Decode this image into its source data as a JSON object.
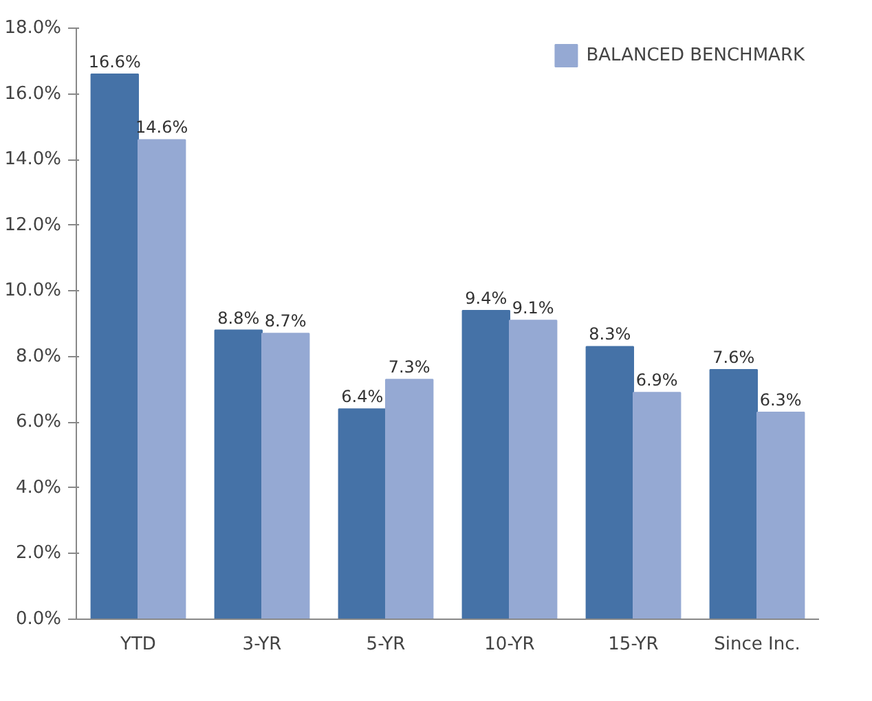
{
  "chart_data": {
    "type": "bar",
    "categories": [
      "YTD",
      "3-YR",
      "5-YR",
      "10-YR",
      "15-YR",
      "Since Inc."
    ],
    "series": [
      {
        "color": "#4572a7",
        "values": [
          16.6,
          8.8,
          6.4,
          9.4,
          8.3,
          7.6
        ],
        "value_labels": [
          "16.6%",
          "8.8%",
          "6.4%",
          "9.4%",
          "8.3%",
          "7.6%"
        ]
      },
      {
        "name": "BALANCED BENCHMARK",
        "color": "#95a9d3",
        "values": [
          14.6,
          8.7,
          7.3,
          9.1,
          6.9,
          6.3
        ],
        "value_labels": [
          "14.6%",
          "8.7%",
          "7.3%",
          "9.1%",
          "6.9%",
          "6.3%"
        ]
      }
    ],
    "ylim": [
      0,
      18
    ],
    "yticks": [
      {
        "value": 0,
        "label": "0.0%"
      },
      {
        "value": 2,
        "label": "2.0%"
      },
      {
        "value": 4,
        "label": "4.0%"
      },
      {
        "value": 6,
        "label": "6.0%"
      },
      {
        "value": 8,
        "label": "8.0%"
      },
      {
        "value": 10,
        "label": "10.0%"
      },
      {
        "value": 12,
        "label": "12.0%"
      },
      {
        "value": 14,
        "label": "14.0%"
      },
      {
        "value": 16,
        "label": "16.0%"
      },
      {
        "value": 18,
        "label": "18.0%"
      }
    ],
    "grid": false,
    "legend": "top right"
  }
}
